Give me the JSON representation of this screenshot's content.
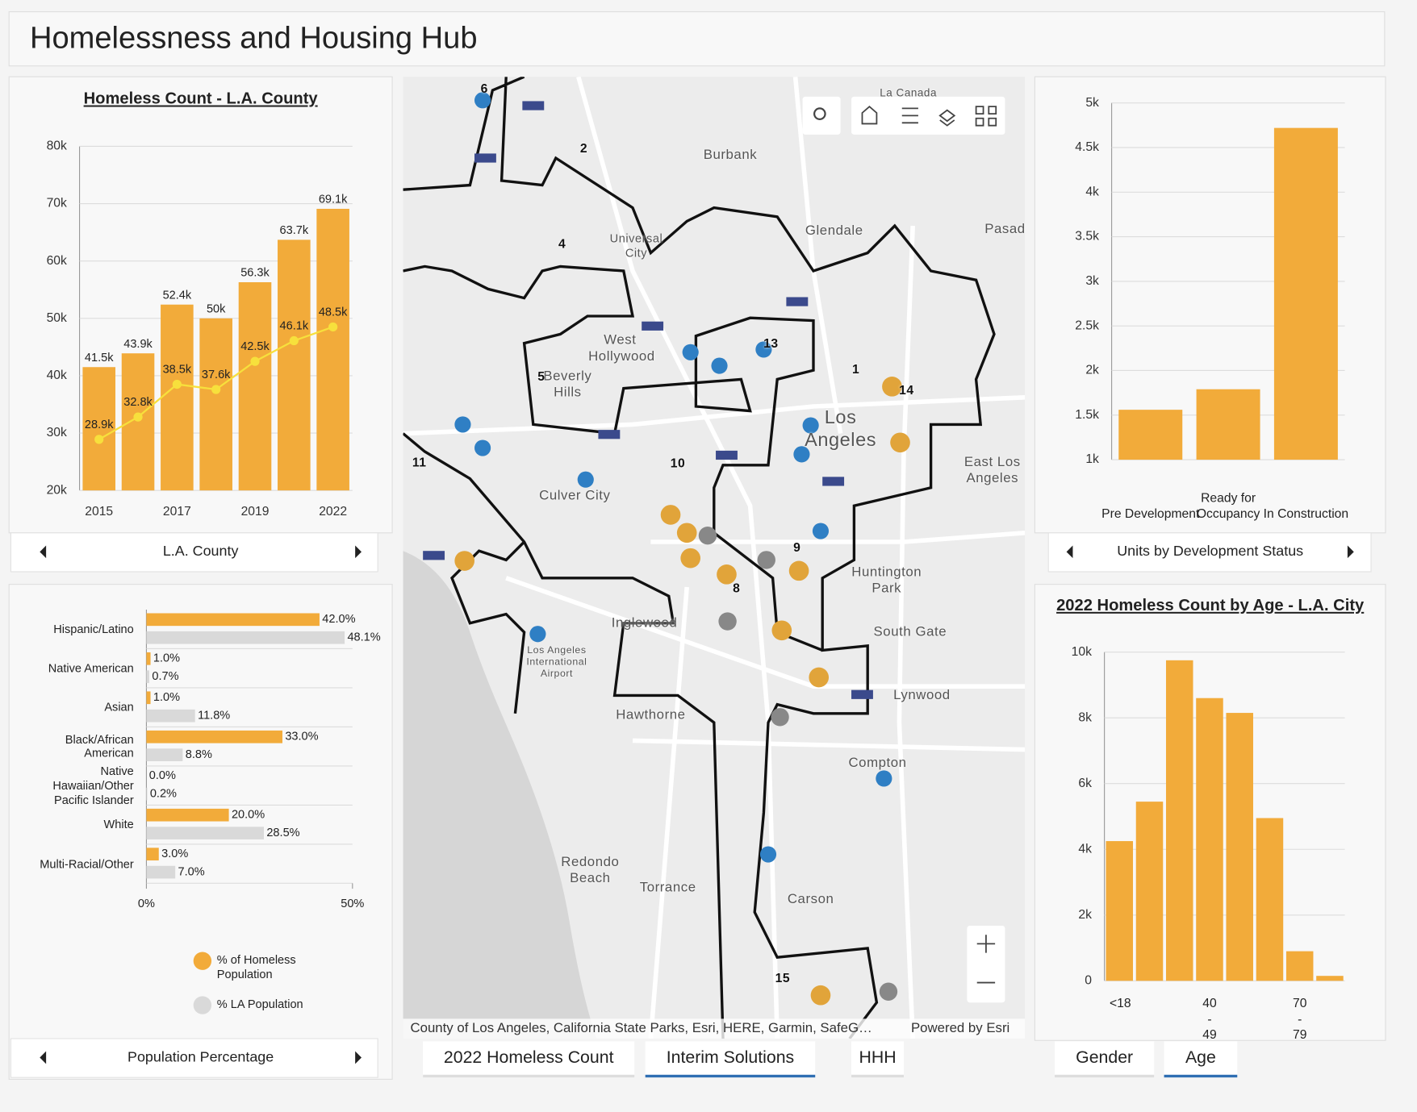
{
  "header": {
    "title": "Homelessness and Housing Hub"
  },
  "chart_data": [
    {
      "type": "combo",
      "title": "Homeless Count - L.A. County",
      "categories": [
        "2015",
        null,
        "2017",
        null,
        "2019",
        null,
        "2022"
      ],
      "series": [
        {
          "type": "bar",
          "color": "#f2ab3a",
          "values": [
            41500,
            43900,
            52400,
            50000,
            56300,
            63700,
            69100
          ],
          "value_labels": [
            "41.5k",
            "43.9k",
            "52.4k",
            "50k",
            "56.3k",
            "63.7k",
            "69.1k"
          ]
        },
        {
          "type": "line",
          "color": "#f7e03c",
          "values": [
            28900,
            32800,
            38500,
            37600,
            42500,
            46100,
            48500
          ],
          "value_labels": [
            "28.9k",
            "32.8k",
            "38.5k",
            "37.6k",
            "42.5k",
            "46.1k",
            "48.5k"
          ]
        }
      ],
      "ylim": [
        20000,
        80000
      ],
      "yticks": [
        {
          "value": 20000,
          "label": "20k"
        },
        {
          "value": 30000,
          "label": "30k"
        },
        {
          "value": 40000,
          "label": "40k"
        },
        {
          "value": 50000,
          "label": "50k"
        },
        {
          "value": 60000,
          "label": "60k"
        },
        {
          "value": 70000,
          "label": "70k"
        },
        {
          "value": 80000,
          "label": "80k"
        }
      ],
      "grid": true,
      "navigator": "L.A. County"
    },
    {
      "type": "hbar",
      "categories": [
        "Hispanic/Latino",
        "Native American",
        "Asian",
        "Black/African American",
        "Native Hawaiian/Other Pacific Islander",
        "White",
        "Multi-Racial/Other"
      ],
      "series": [
        {
          "name": "% of Homeless Population",
          "color": "#f2ab3a",
          "values": [
            42.0,
            1.0,
            1.0,
            33.0,
            0.0,
            20.0,
            3.0
          ],
          "value_labels": [
            "42.0%",
            "1.0%",
            "1.0%",
            "33.0%",
            "0.0%",
            "20.0%",
            "3.0%"
          ]
        },
        {
          "name": "% LA Population",
          "color": "#d9d9d9",
          "values": [
            48.1,
            0.7,
            11.8,
            8.8,
            0.2,
            28.5,
            7.0
          ],
          "value_labels": [
            "48.1%",
            "0.7%",
            "11.8%",
            "8.8%",
            "0.2%",
            "28.5%",
            "7.0%"
          ]
        }
      ],
      "xlim": [
        0,
        50
      ],
      "xticks": [
        {
          "value": 0,
          "label": "0%"
        },
        {
          "value": 50,
          "label": "50%"
        }
      ],
      "legend": "bottom",
      "navigator": "Population Percentage"
    },
    {
      "type": "bar",
      "categories": [
        "Pre Development",
        "Ready for Occupancy",
        "In Construction"
      ],
      "values": [
        1560,
        1790,
        4720
      ],
      "color": "#f2ab3a",
      "ylim": [
        1000,
        5000
      ],
      "yticks": [
        {
          "value": 1000,
          "label": "1k"
        },
        {
          "value": 1500,
          "label": "1.5k"
        },
        {
          "value": 2000,
          "label": "2k"
        },
        {
          "value": 2500,
          "label": "2.5k"
        },
        {
          "value": 3000,
          "label": "3k"
        },
        {
          "value": 3500,
          "label": "3.5k"
        },
        {
          "value": 4000,
          "label": "4k"
        },
        {
          "value": 4500,
          "label": "4.5k"
        },
        {
          "value": 5000,
          "label": "5k"
        }
      ],
      "grid": true,
      "navigator": "Units by Development Status"
    },
    {
      "type": "bar",
      "title": "2022 Homeless Count by Age - L.A. City",
      "categories": [
        "<18",
        null,
        null,
        "40 - 49",
        null,
        null,
        "70 - 79",
        null
      ],
      "values": [
        4250,
        5450,
        9750,
        8600,
        8150,
        4950,
        900,
        150
      ],
      "color": "#f2ab3a",
      "ylim": [
        0,
        10000
      ],
      "yticks": [
        0,
        {
          "value": 2000,
          "label": "2k"
        },
        {
          "value": 4000,
          "label": "4k"
        },
        {
          "value": 6000,
          "label": "6k"
        },
        {
          "value": 8000,
          "label": "8k"
        },
        {
          "value": 10000,
          "label": "10k"
        }
      ],
      "grid": true
    }
  ],
  "map": {
    "labels": [
      "La Canada",
      "Burbank",
      "Glendale",
      "Pasad",
      "Universal City",
      "West Hollywood",
      "Beverly Hills",
      "Los Angeles",
      "Culver City",
      "East Los Angeles",
      "Huntington Park",
      "South Gate",
      "Inglewood",
      "Los Angeles International Airport",
      "Lynwood",
      "Hawthorne",
      "Compton",
      "Redondo Beach",
      "Torrance",
      "Carson",
      "6",
      "2",
      "4",
      "5",
      "13",
      "1",
      "14",
      "11",
      "10",
      "9",
      "8",
      "15"
    ],
    "attribution": "County of Los Angeles, California State Parks, Esri, HERE, Garmin, SafeG…",
    "powered": "Powered by Esri"
  },
  "tabs": {
    "map": {
      "items": [
        "2022 Homeless Count",
        "Interim Solutions",
        "HHH"
      ],
      "active": 1
    },
    "age": {
      "items": [
        "Gender",
        "Age"
      ],
      "active": 1
    }
  }
}
